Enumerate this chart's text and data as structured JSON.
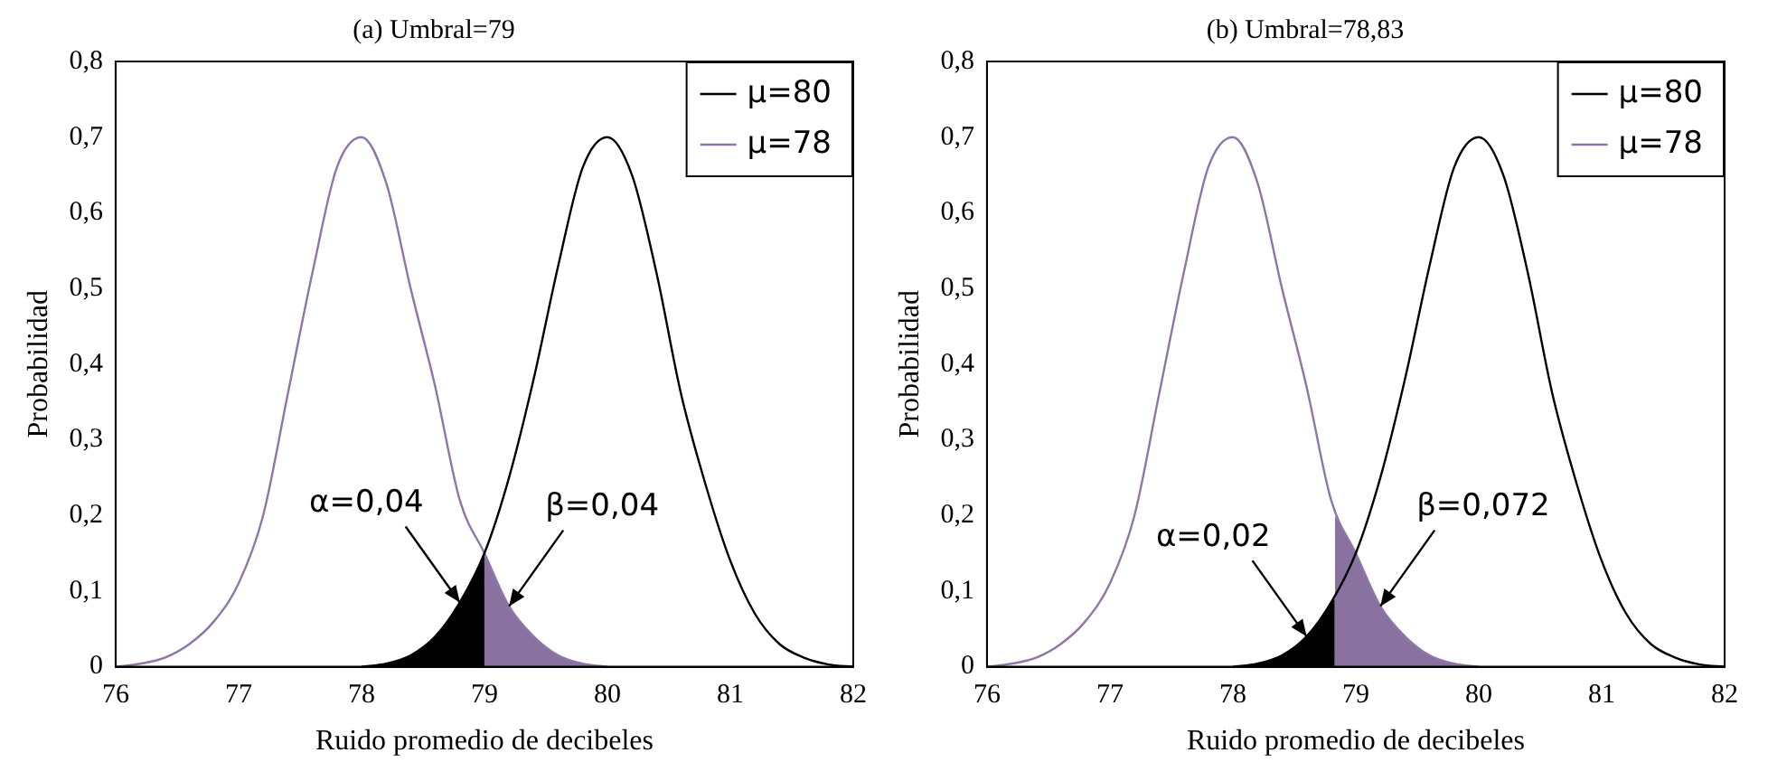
{
  "chart_data": [
    {
      "type": "line",
      "title": "(a) Umbral=79",
      "xlabel": "Ruido promedio de decibeles",
      "ylabel": "Probabilidad",
      "xlim": [
        76,
        82
      ],
      "xticks": [
        76,
        77,
        78,
        79,
        80,
        81,
        82
      ],
      "ylim": [
        0,
        0.8
      ],
      "yticks": [
        {
          "value": 0,
          "label": "0"
        },
        {
          "value": 0.1,
          "label": "0,1"
        },
        {
          "value": 0.2,
          "label": "0,2"
        },
        {
          "value": 0.3,
          "label": "0,3"
        },
        {
          "value": 0.4,
          "label": "0,4"
        },
        {
          "value": 0.5,
          "label": "0,5"
        },
        {
          "value": 0.6,
          "label": "0,6"
        },
        {
          "value": 0.7,
          "label": "0,7"
        },
        {
          "value": 0.8,
          "label": "0,8"
        }
      ],
      "grid": false,
      "legend": "top right",
      "marker": "none",
      "series": [
        {
          "type": "area",
          "color": "#000000",
          "x": [
            78,
            78.2,
            78.4,
            78.6,
            78.8,
            79
          ],
          "values": [
            0,
            0.004,
            0.015,
            0.04,
            0.085,
            0.15
          ]
        },
        {
          "type": "area",
          "color": "#8a72a0",
          "x": [
            79,
            79.2,
            79.4,
            79.6,
            79.8,
            80
          ],
          "values": [
            0.15,
            0.08,
            0.04,
            0.015,
            0.004,
            0
          ]
        },
        {
          "name": "μ=80",
          "color": "#000000",
          "x": [
            78,
            78.2,
            78.4,
            78.6,
            78.8,
            79,
            79.2,
            79.4,
            79.6,
            79.8,
            80,
            80.2,
            80.4,
            80.6,
            80.8,
            81,
            81.2,
            81.4,
            81.6,
            81.8,
            82
          ],
          "values": [
            0,
            0.004,
            0.015,
            0.04,
            0.085,
            0.15,
            0.25,
            0.38,
            0.53,
            0.66,
            0.7,
            0.65,
            0.52,
            0.36,
            0.24,
            0.14,
            0.07,
            0.03,
            0.012,
            0.003,
            0
          ]
        },
        {
          "name": "μ=78",
          "color": "#8e76a8",
          "x": [
            76,
            76.2,
            76.4,
            76.6,
            76.8,
            77,
            77.2,
            77.4,
            77.6,
            77.8,
            78,
            78.2,
            78.4,
            78.6,
            78.8,
            79,
            79.2,
            79.4,
            79.6,
            79.8,
            80
          ],
          "values": [
            0,
            0.004,
            0.012,
            0.03,
            0.06,
            0.11,
            0.2,
            0.36,
            0.52,
            0.66,
            0.7,
            0.64,
            0.5,
            0.37,
            0.22,
            0.15,
            0.08,
            0.04,
            0.015,
            0.004,
            0
          ]
        }
      ],
      "annotations": [
        {
          "text": "α=0,04",
          "x": 78.8,
          "y": 0.085
        },
        {
          "text": "β=0,04",
          "x": 79.2,
          "y": 0.08
        }
      ]
    },
    {
      "type": "line",
      "title": "(b) Umbral=78,83",
      "xlabel": "Ruido promedio de decibeles",
      "ylabel": "Probabilidad",
      "xlim": [
        76,
        82
      ],
      "xticks": [
        76,
        77,
        78,
        79,
        80,
        81,
        82
      ],
      "ylim": [
        0,
        0.8
      ],
      "yticks": [
        {
          "value": 0,
          "label": "0"
        },
        {
          "value": 0.1,
          "label": "0,1"
        },
        {
          "value": 0.2,
          "label": "0,2"
        },
        {
          "value": 0.3,
          "label": "0,3"
        },
        {
          "value": 0.4,
          "label": "0,4"
        },
        {
          "value": 0.5,
          "label": "0,5"
        },
        {
          "value": 0.6,
          "label": "0,6"
        },
        {
          "value": 0.7,
          "label": "0,7"
        },
        {
          "value": 0.8,
          "label": "0,8"
        }
      ],
      "grid": false,
      "legend": "top right",
      "marker": "none",
      "series": [
        {
          "type": "area",
          "color": "#000000",
          "x": [
            78,
            78.2,
            78.4,
            78.6,
            78.8,
            78.83
          ],
          "values": [
            0,
            0.004,
            0.015,
            0.04,
            0.085,
            0.09
          ]
        },
        {
          "type": "area",
          "color": "#8a72a0",
          "x": [
            78.83,
            79,
            79.2,
            79.4,
            79.6,
            79.8,
            80
          ],
          "values": [
            0.2,
            0.15,
            0.08,
            0.04,
            0.015,
            0.004,
            0
          ]
        },
        {
          "name": "μ=80",
          "color": "#000000",
          "x": [
            78,
            78.2,
            78.4,
            78.6,
            78.8,
            79,
            79.2,
            79.4,
            79.6,
            79.8,
            80,
            80.2,
            80.4,
            80.6,
            80.8,
            81,
            81.2,
            81.4,
            81.6,
            81.8,
            82
          ],
          "values": [
            0,
            0.004,
            0.015,
            0.04,
            0.085,
            0.15,
            0.25,
            0.38,
            0.53,
            0.66,
            0.7,
            0.65,
            0.52,
            0.36,
            0.24,
            0.14,
            0.07,
            0.03,
            0.012,
            0.003,
            0
          ]
        },
        {
          "name": "μ=78",
          "color": "#8e76a8",
          "x": [
            76,
            76.2,
            76.4,
            76.6,
            76.8,
            77,
            77.2,
            77.4,
            77.6,
            77.8,
            78,
            78.2,
            78.4,
            78.6,
            78.8,
            79,
            79.2,
            79.4,
            79.6,
            79.8,
            80
          ],
          "values": [
            0,
            0.004,
            0.012,
            0.03,
            0.06,
            0.11,
            0.2,
            0.36,
            0.52,
            0.66,
            0.7,
            0.64,
            0.5,
            0.37,
            0.22,
            0.15,
            0.08,
            0.04,
            0.015,
            0.004,
            0
          ]
        }
      ],
      "annotations": [
        {
          "text": "α=0,02",
          "x": 78.6,
          "y": 0.04
        },
        {
          "text": "β=0,072",
          "x": 79.2,
          "y": 0.08
        }
      ]
    }
  ]
}
